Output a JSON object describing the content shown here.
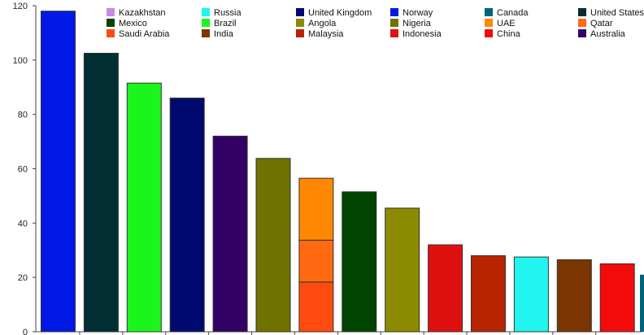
{
  "chart_data": {
    "type": "bar",
    "stacked": true,
    "ylim": [
      0,
      120
    ],
    "yticks": [
      0,
      20,
      40,
      60,
      80,
      100,
      120
    ],
    "grid": false,
    "legend_position": "top",
    "legend": [
      {
        "name": "Kazakhstan",
        "color": "#c58be6"
      },
      {
        "name": "Russia",
        "color": "#22f5f0"
      },
      {
        "name": "United Kingdom",
        "color": "#000a6e"
      },
      {
        "name": "Norway",
        "color": "#0019e6"
      },
      {
        "name": "Canada",
        "color": "#00637a"
      },
      {
        "name": "United States",
        "color": "#002e32"
      },
      {
        "name": "Mexico",
        "color": "#004400"
      },
      {
        "name": "Brazil",
        "color": "#1bf51b"
      },
      {
        "name": "Angola",
        "color": "#8c8a00"
      },
      {
        "name": "Nigeria",
        "color": "#6e7300"
      },
      {
        "name": "UAE",
        "color": "#ff8800"
      },
      {
        "name": "Qatar",
        "color": "#ff6a10"
      },
      {
        "name": "Saudi Arabia",
        "color": "#ff4a10"
      },
      {
        "name": "India",
        "color": "#7a3500"
      },
      {
        "name": "Malaysia",
        "color": "#b82400"
      },
      {
        "name": "Indonesia",
        "color": "#e01010"
      },
      {
        "name": "China",
        "color": "#f50a0a"
      },
      {
        "name": "Australia",
        "color": "#330066"
      }
    ],
    "bars": [
      {
        "segments": [
          {
            "series": "Norway",
            "value": 118
          }
        ]
      },
      {
        "segments": [
          {
            "series": "United States",
            "value": 102.5
          }
        ]
      },
      {
        "segments": [
          {
            "series": "Brazil",
            "value": 91.5
          }
        ]
      },
      {
        "segments": [
          {
            "series": "United Kingdom",
            "value": 86
          }
        ]
      },
      {
        "segments": [
          {
            "series": "Australia",
            "value": 72
          }
        ]
      },
      {
        "segments": [
          {
            "series": "Nigeria",
            "value": 63.8
          }
        ]
      },
      {
        "segments": [
          {
            "series": "Saudi Arabia",
            "value": 18.3
          },
          {
            "series": "Qatar",
            "value": 15.4
          },
          {
            "series": "UAE",
            "value": 22.8
          }
        ]
      },
      {
        "segments": [
          {
            "series": "Mexico",
            "value": 51.5
          }
        ]
      },
      {
        "segments": [
          {
            "series": "Angola",
            "value": 45.5
          }
        ]
      },
      {
        "segments": [
          {
            "series": "Indonesia",
            "value": 32
          }
        ]
      },
      {
        "segments": [
          {
            "series": "Malaysia",
            "value": 28
          }
        ]
      },
      {
        "segments": [
          {
            "series": "Russia",
            "value": 27.5
          }
        ]
      },
      {
        "segments": [
          {
            "series": "India",
            "value": 26.5
          }
        ]
      },
      {
        "segments": [
          {
            "series": "China",
            "value": 25
          }
        ]
      }
    ],
    "extra_marks": [
      {
        "series": "Canada",
        "value": 21
      }
    ]
  }
}
